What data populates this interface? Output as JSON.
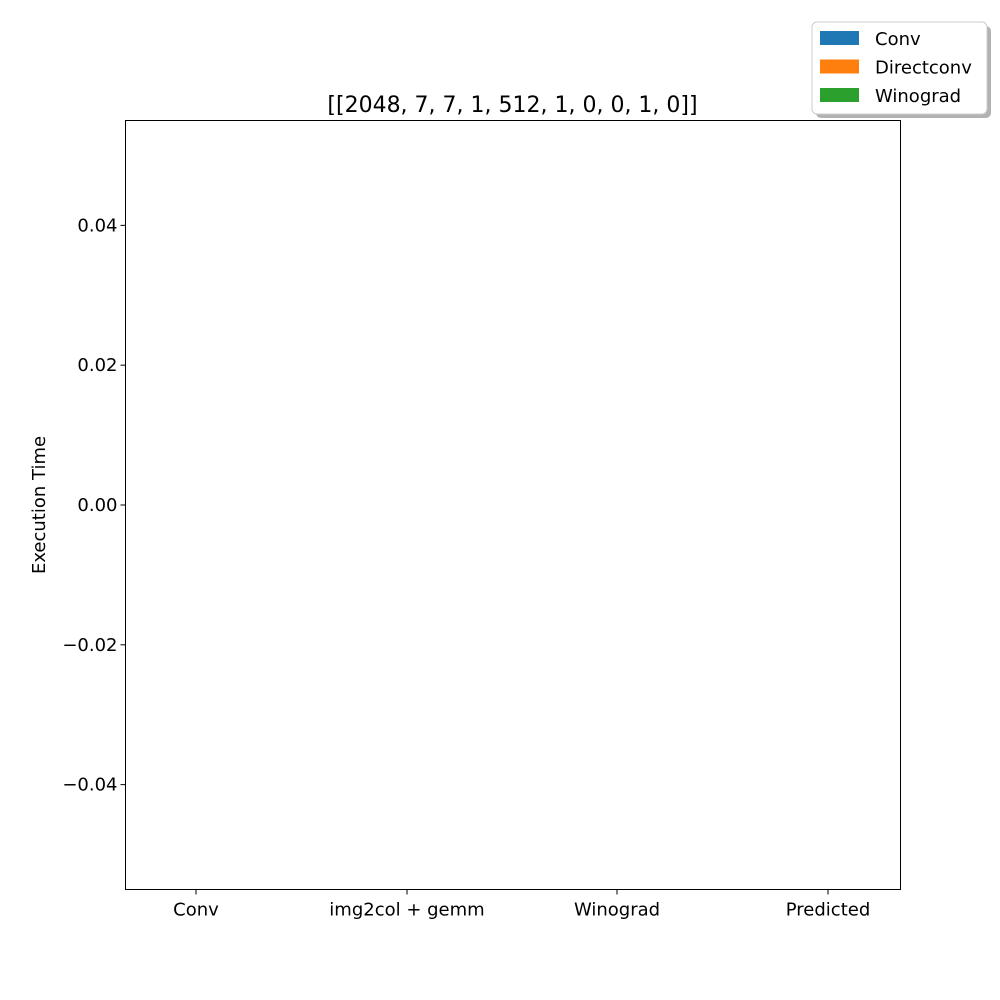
{
  "chart_data": {
    "type": "bar",
    "title": "[[2048, 7, 7, 1, 512, 1, 0, 0, 1, 0]]",
    "xlabel": "",
    "ylabel": "Execution Time",
    "categories": [
      "Conv",
      "img2col + gemm",
      "Winograd",
      "Predicted"
    ],
    "series": [
      {
        "name": "Conv",
        "color": "#1f77b4",
        "values": [
          null,
          null,
          null,
          null
        ]
      },
      {
        "name": "Directconv",
        "color": "#ff7f0e",
        "values": [
          null,
          null,
          null,
          null
        ]
      },
      {
        "name": "Winograd",
        "color": "#2ca02c",
        "values": [
          null,
          null,
          null,
          null
        ]
      }
    ],
    "ylim": [
      -0.055,
      0.055
    ],
    "yticks": [
      -0.04,
      -0.02,
      0.0,
      0.02,
      0.04
    ],
    "ytick_labels": [
      "−0.04",
      "−0.02",
      "0.00",
      "0.02",
      "0.04"
    ],
    "grid": false,
    "legend_position": "top-right"
  }
}
